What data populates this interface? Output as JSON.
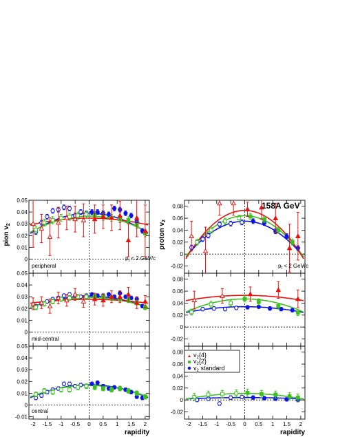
{
  "figure": {
    "energy_label": "158A  GeV",
    "pt_cut_label": "p",
    "pt_cut_sub": "t",
    "pt_cut_rest": " < 2 GeV/c"
  },
  "legend": {
    "entries": [
      {
        "symbol": "triangle",
        "color": "#e8120c",
        "label": "v",
        "sub": "2",
        "rest": "{4}"
      },
      {
        "symbol": "square",
        "color": "#3fbf23",
        "label": "v",
        "sub": "2",
        "rest": "{2}"
      },
      {
        "symbol": "circle",
        "color": "#0a14e6",
        "label": "v",
        "sub": "2",
        "rest": " standard"
      }
    ]
  },
  "colors": {
    "v2_4": "#e8120c",
    "v2_2": "#3fbf23",
    "v2_std": "#0a14e6"
  },
  "chart_data": [
    {
      "type": "scatter",
      "panel": "pion-peripheral",
      "ylabel": "pion v",
      "ylabel_sub": "2",
      "xlabel": "",
      "region_label": "peripheral",
      "xlim": [
        -2.15,
        2.15
      ],
      "ylim": [
        -0.012,
        0.05
      ],
      "yticks": [
        0,
        0.01,
        0.02,
        0.03,
        0.04,
        0.05
      ],
      "ytick_labels": [
        "0",
        "0.01",
        "0.02",
        "0.03",
        "0.04",
        "0.05"
      ],
      "xticks": [
        -2,
        -1.5,
        -1,
        -0.5,
        0,
        0.5,
        1,
        1.5,
        2
      ],
      "xtick_labels": [],
      "fits": [
        {
          "series": "v2_std",
          "a": 0.039,
          "b": -0.0039
        },
        {
          "series": "v2_2",
          "a": 0.0365,
          "b": -0.0031
        },
        {
          "series": "v2_4",
          "a": 0.0348,
          "b": -0.0013
        }
      ],
      "series": [
        {
          "key": "v2_std",
          "x": [
            -1.9,
            -1.7,
            -1.5,
            -1.3,
            -1.1,
            -0.9,
            -0.7,
            -0.5,
            -0.3,
            -0.1,
            0.1,
            0.3,
            0.5,
            0.7,
            0.9,
            1.1,
            1.3,
            1.5,
            1.7,
            1.9
          ],
          "y": [
            0.023,
            0.031,
            0.036,
            0.041,
            0.042,
            0.044,
            0.043,
            0.037,
            0.04,
            0.039,
            0.04,
            0.04,
            0.039,
            0.038,
            0.043,
            0.042,
            0.039,
            0.037,
            0.032,
            0.024
          ],
          "err": [
            0.002,
            0.002,
            0.002,
            0.002,
            0.002,
            0.002,
            0.002,
            0.002,
            0.002,
            0.002,
            0.002,
            0.002,
            0.002,
            0.002,
            0.002,
            0.002,
            0.002,
            0.002,
            0.002,
            0.002
          ]
        },
        {
          "key": "v2_2",
          "x": [
            -1.9,
            -1.6,
            -1.3,
            -1.0,
            -0.7,
            -0.4,
            -0.1,
            0.2,
            0.5,
            0.8,
            1.1,
            1.4,
            1.7,
            2.0
          ],
          "y": [
            0.025,
            0.031,
            0.033,
            0.035,
            0.036,
            0.037,
            0.038,
            0.037,
            0.036,
            0.035,
            0.034,
            0.033,
            0.029,
            0.022
          ],
          "err": [
            0.003,
            0.003,
            0.003,
            0.003,
            0.003,
            0.003,
            0.003,
            0.003,
            0.003,
            0.003,
            0.003,
            0.003,
            0.003,
            0.003
          ]
        },
        {
          "key": "v2_4",
          "x": [
            -2.0,
            -1.7,
            -1.4,
            -1.1,
            -0.8,
            -0.5,
            -0.2,
            0.2,
            0.5,
            0.8,
            1.1,
            1.4,
            1.7,
            2.0
          ],
          "y": [
            0.03,
            0.026,
            0.019,
            0.031,
            0.035,
            0.034,
            0.033,
            0.034,
            0.036,
            0.035,
            0.037,
            0.016,
            0.035,
            0.024
          ],
          "err": [
            0.02,
            0.012,
            0.016,
            0.013,
            0.01,
            0.011,
            0.014,
            0.012,
            0.01,
            0.011,
            0.012,
            0.014,
            0.016,
            0.022
          ]
        }
      ]
    },
    {
      "type": "scatter",
      "panel": "pion-mid-central",
      "ylabel": "",
      "xlabel": "",
      "region_label": "mid-central",
      "xlim": [
        -2.15,
        2.15
      ],
      "ylim": [
        -0.012,
        0.05
      ],
      "yticks": [
        0,
        0.01,
        0.02,
        0.03,
        0.04,
        0.05
      ],
      "ytick_labels": [
        "0",
        "0.01",
        "0.02",
        "0.03",
        "0.04",
        "0.05"
      ],
      "xticks": [
        -2,
        -1.5,
        -1,
        -0.5,
        0,
        0.5,
        1,
        1.5,
        2
      ],
      "xtick_labels": [],
      "fits": [
        {
          "series": "v2_std",
          "a": 0.0305,
          "b": -0.0022
        },
        {
          "series": "v2_2",
          "a": 0.0293,
          "b": -0.0019
        },
        {
          "series": "v2_4",
          "a": 0.0278,
          "b": -0.00075
        }
      ],
      "series": [
        {
          "key": "v2_std",
          "x": [
            -1.9,
            -1.7,
            -1.5,
            -1.3,
            -1.1,
            -0.9,
            -0.7,
            -0.5,
            -0.3,
            -0.1,
            0.1,
            0.3,
            0.5,
            0.7,
            0.9,
            1.1,
            1.3,
            1.5,
            1.7,
            1.9
          ],
          "y": [
            0.022,
            0.024,
            0.026,
            0.028,
            0.029,
            0.031,
            0.032,
            0.031,
            0.03,
            0.031,
            0.032,
            0.031,
            0.031,
            0.032,
            0.03,
            0.033,
            0.03,
            0.029,
            0.028,
            0.022
          ],
          "err": [
            0.0015,
            0.0015,
            0.0015,
            0.0015,
            0.0015,
            0.0015,
            0.0015,
            0.0015,
            0.0015,
            0.0015,
            0.0015,
            0.0015,
            0.0015,
            0.0015,
            0.0015,
            0.0015,
            0.0015,
            0.0015,
            0.0015,
            0.0015
          ]
        },
        {
          "key": "v2_2",
          "x": [
            -1.9,
            -1.6,
            -1.3,
            -1.0,
            -0.7,
            -0.4,
            -0.1,
            0.2,
            0.5,
            0.8,
            1.1,
            1.4,
            1.7,
            2.0
          ],
          "y": [
            0.021,
            0.024,
            0.026,
            0.028,
            0.029,
            0.03,
            0.03,
            0.03,
            0.03,
            0.029,
            0.028,
            0.027,
            0.025,
            0.021
          ],
          "err": [
            0.002,
            0.002,
            0.002,
            0.002,
            0.002,
            0.002,
            0.002,
            0.002,
            0.002,
            0.002,
            0.002,
            0.002,
            0.002,
            0.002
          ]
        },
        {
          "key": "v2_4",
          "x": [
            -2.0,
            -1.7,
            -1.4,
            -1.1,
            -0.8,
            -0.5,
            -0.2,
            0.2,
            0.5,
            0.8,
            1.1,
            1.4,
            1.7,
            2.0
          ],
          "y": [
            0.024,
            0.025,
            0.022,
            0.029,
            0.027,
            0.032,
            0.026,
            0.028,
            0.027,
            0.03,
            0.03,
            0.032,
            0.025,
            0.026
          ],
          "err": [
            0.005,
            0.005,
            0.006,
            0.005,
            0.005,
            0.005,
            0.005,
            0.005,
            0.005,
            0.005,
            0.005,
            0.006,
            0.005,
            0.005
          ]
        }
      ]
    },
    {
      "type": "scatter",
      "panel": "pion-central",
      "ylabel": "",
      "xlabel": "rapidity",
      "region_label": "central",
      "xlim": [
        -2.15,
        2.15
      ],
      "ylim": [
        -0.012,
        0.05
      ],
      "yticks": [
        -0.01,
        0,
        0.01,
        0.02,
        0.03,
        0.04,
        0.05
      ],
      "ytick_labels": [
        "-0.01",
        "0",
        "0.01",
        "0.02",
        "0.03",
        "0.04",
        "0.05"
      ],
      "xticks": [
        -2,
        -1.5,
        -1,
        -0.5,
        0,
        0.5,
        1,
        1.5,
        2
      ],
      "xtick_labels": [
        "-2",
        "-1.5",
        "-1",
        "-0.5",
        "0",
        "0.5",
        "1",
        "1.5",
        "2"
      ],
      "fits": [
        {
          "series": "v2_std",
          "a": 0.0172,
          "b": -0.0025
        },
        {
          "series": "v2_2",
          "a": 0.0166,
          "b": -0.0022
        }
      ],
      "series": [
        {
          "key": "v2_std",
          "x": [
            -1.9,
            -1.7,
            -1.5,
            -1.3,
            -1.1,
            -0.9,
            -0.7,
            -0.5,
            -0.3,
            -0.1,
            0.1,
            0.3,
            0.5,
            0.7,
            0.9,
            1.1,
            1.3,
            1.5,
            1.7,
            1.9
          ],
          "y": [
            0.006,
            0.008,
            0.011,
            0.013,
            0.014,
            0.018,
            0.018,
            0.016,
            0.017,
            0.016,
            0.018,
            0.019,
            0.016,
            0.014,
            0.015,
            0.014,
            0.013,
            0.011,
            0.007,
            0.006
          ],
          "err": [
            0.0015,
            0.0015,
            0.0015,
            0.0015,
            0.0015,
            0.0015,
            0.0015,
            0.0015,
            0.0015,
            0.0015,
            0.0015,
            0.0015,
            0.0015,
            0.0015,
            0.0015,
            0.0015,
            0.0015,
            0.0015,
            0.0015,
            0.0015
          ]
        },
        {
          "key": "v2_2",
          "x": [
            -1.9,
            -1.6,
            -1.3,
            -1.0,
            -0.7,
            -0.4,
            -0.1,
            0.2,
            0.5,
            0.8,
            1.1,
            1.4,
            1.7,
            2.0
          ],
          "y": [
            0.009,
            0.012,
            0.011,
            0.013,
            0.013,
            0.015,
            0.016,
            0.015,
            0.014,
            0.013,
            0.014,
            0.012,
            0.01,
            0.007
          ],
          "err": [
            0.002,
            0.002,
            0.002,
            0.002,
            0.002,
            0.002,
            0.002,
            0.002,
            0.002,
            0.002,
            0.002,
            0.002,
            0.002,
            0.002
          ]
        }
      ]
    },
    {
      "type": "scatter",
      "panel": "proton-peripheral",
      "ylabel": "proton v",
      "ylabel_sub": "2",
      "xlabel": "",
      "region_label": "",
      "xlim": [
        -2.15,
        2.15
      ],
      "ylim": [
        -0.032,
        0.09
      ],
      "yticks": [
        -0.02,
        0,
        0.02,
        0.04,
        0.06,
        0.08
      ],
      "ytick_labels": [
        "-0.02",
        "0",
        "0.02",
        "0.04",
        "0.06",
        "0.08"
      ],
      "xticks": [
        -2,
        -1.5,
        -1,
        -0.5,
        0,
        0.5,
        1,
        1.5,
        2
      ],
      "xtick_labels": [],
      "fits": [
        {
          "series": "v2_std",
          "a": 0.055,
          "b": -0.0135
        },
        {
          "series": "v2_2",
          "a": 0.064,
          "b": -0.0155
        },
        {
          "series": "v2_4",
          "a": 0.073,
          "b": -0.0183
        }
      ],
      "series": [
        {
          "key": "v2_std",
          "x": [
            -1.9,
            -1.5,
            -1.3,
            -0.9,
            -0.5,
            -0.1,
            0.3,
            0.7,
            1.1,
            1.5,
            1.9
          ],
          "y": [
            0.011,
            0.025,
            0.031,
            0.05,
            0.051,
            0.053,
            0.055,
            0.052,
            0.038,
            0.03,
            0.01
          ],
          "err": [
            0.004,
            0.004,
            0.004,
            0.004,
            0.004,
            0.004,
            0.004,
            0.004,
            0.004,
            0.004,
            0.004
          ]
        },
        {
          "key": "v2_2",
          "x": [
            -1.7,
            -1.2,
            -0.7,
            -0.2,
            0.2,
            0.7,
            1.2,
            1.7
          ],
          "y": [
            0.02,
            0.04,
            0.055,
            0.06,
            0.063,
            0.058,
            0.04,
            0.02
          ],
          "err": [
            0.005,
            0.005,
            0.005,
            0.005,
            0.005,
            0.005,
            0.005,
            0.005
          ]
        },
        {
          "key": "v2_4",
          "x": [
            -1.9,
            -1.4,
            -0.9,
            -0.4,
            0.1,
            0.6,
            1.1,
            1.6,
            1.9
          ],
          "y": [
            0.03,
            0.005,
            0.085,
            0.085,
            0.075,
            0.078,
            0.06,
            0.01,
            0.03
          ],
          "err": [
            0.025,
            0.04,
            0.02,
            0.02,
            0.012,
            0.02,
            0.025,
            0.04,
            0.04
          ]
        }
      ]
    },
    {
      "type": "scatter",
      "panel": "proton-mid-central",
      "ylabel": "",
      "xlabel": "",
      "region_label": "",
      "xlim": [
        -2.15,
        2.15
      ],
      "ylim": [
        -0.032,
        0.09
      ],
      "yticks": [
        -0.02,
        0,
        0.02,
        0.04,
        0.06,
        0.08
      ],
      "ytick_labels": [
        "-0.02",
        "0",
        "0.02",
        "0.04",
        "0.06",
        "0.08"
      ],
      "xticks": [
        -2,
        -1.5,
        -1,
        -0.5,
        0,
        0.5,
        1,
        1.5,
        2
      ],
      "xtick_labels": [],
      "fits": [
        {
          "series": "v2_std",
          "a": 0.034,
          "b": -0.0022
        },
        {
          "series": "v2_2",
          "a": 0.047,
          "b": -0.005
        },
        {
          "series": "v2_4",
          "a": 0.053,
          "b": -0.002
        }
      ],
      "series": [
        {
          "key": "v2_std",
          "x": [
            -1.9,
            -1.5,
            -1.1,
            -0.7,
            -0.3,
            0.1,
            0.5,
            0.9,
            1.3,
            1.7
          ],
          "y": [
            0.025,
            0.03,
            0.031,
            0.03,
            0.032,
            0.033,
            0.034,
            0.031,
            0.03,
            0.028
          ],
          "err": [
            0.003,
            0.003,
            0.003,
            0.003,
            0.003,
            0.003,
            0.003,
            0.003,
            0.003,
            0.003
          ]
        },
        {
          "key": "v2_2",
          "x": [
            -1.9,
            -1.2,
            -0.5,
            0.0,
            0.5,
            1.2,
            1.9
          ],
          "y": [
            0.025,
            0.038,
            0.04,
            0.047,
            0.042,
            0.035,
            0.024
          ],
          "err": [
            0.005,
            0.005,
            0.005,
            0.005,
            0.005,
            0.005,
            0.005
          ]
        },
        {
          "key": "v2_4",
          "x": [
            -1.8,
            -0.8,
            0.2,
            1.2,
            1.9
          ],
          "y": [
            0.045,
            0.052,
            0.055,
            0.062,
            0.047
          ],
          "err": [
            0.015,
            0.012,
            0.012,
            0.014,
            0.015
          ]
        }
      ]
    },
    {
      "type": "scatter",
      "panel": "proton-central",
      "ylabel": "",
      "xlabel": "rapidity",
      "region_label": "",
      "xlim": [
        -2.15,
        2.15
      ],
      "ylim": [
        -0.032,
        0.09
      ],
      "yticks": [
        -0.02,
        0,
        0.02,
        0.04,
        0.06,
        0.08
      ],
      "ytick_labels": [
        "-0.02",
        "0",
        "0.02",
        "0.04",
        "0.06",
        "0.08"
      ],
      "xticks": [
        -2,
        -1.5,
        -1,
        -0.5,
        0,
        0.5,
        1,
        1.5,
        2
      ],
      "xtick_labels": [
        "-2",
        "-1.5",
        "-1",
        "-0.5",
        "0",
        "0.5",
        "1",
        "1.5",
        "2"
      ],
      "fits": [
        {
          "series": "v2_std",
          "a": 0.004,
          "b": -0.0005
        },
        {
          "series": "v2_2",
          "a": 0.011,
          "b": -0.0022
        }
      ],
      "series": [
        {
          "key": "v2_std",
          "x": [
            -1.7,
            -1.3,
            -0.9,
            -0.5,
            -0.1,
            0.3,
            0.7,
            1.1,
            1.5,
            1.9
          ],
          "y": [
            0.0,
            0.002,
            -0.006,
            0.004,
            0.005,
            0.004,
            0.003,
            0.002,
            0.001,
            0.0
          ],
          "err": [
            0.003,
            0.003,
            0.003,
            0.003,
            0.003,
            0.003,
            0.003,
            0.003,
            0.003,
            0.003
          ]
        },
        {
          "key": "v2_2",
          "x": [
            -1.8,
            -1.3,
            -0.8,
            -0.3,
            0.1,
            0.6,
            1.1,
            1.6,
            1.9
          ],
          "y": [
            0.005,
            0.009,
            0.01,
            0.011,
            0.012,
            0.01,
            0.009,
            0.006,
            0.004
          ],
          "err": [
            0.006,
            0.006,
            0.006,
            0.006,
            0.006,
            0.006,
            0.006,
            0.006,
            0.006
          ]
        }
      ]
    }
  ]
}
